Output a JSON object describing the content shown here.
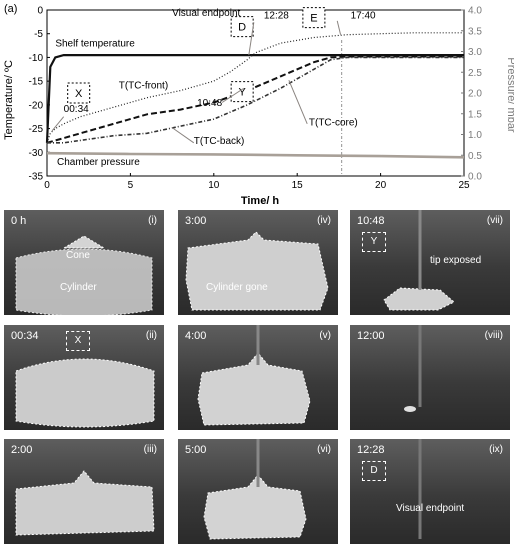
{
  "chart_data": {
    "type": "line",
    "panel_label": "(a)",
    "xlabel": "Time/ h",
    "ylabel_left": "Temperature/ ºC",
    "ylabel_right": "Pressure/ mbar",
    "xlim": [
      0,
      25
    ],
    "ylim_left": [
      -35,
      0
    ],
    "ylim_right": [
      0,
      4
    ],
    "xticks": [
      "0",
      "5",
      "10",
      "15",
      "20",
      "25"
    ],
    "yticks_left": [
      "0",
      "-5",
      "-10",
      "-15",
      "-20",
      "-25",
      "-30",
      "-35"
    ],
    "yticks_right": [
      "0.0",
      "0.5",
      "1.0",
      "1.5",
      "2.0",
      "2.5",
      "3.0",
      "3.5",
      "4.0"
    ],
    "series": [
      {
        "name": "Shelf temperature",
        "axis": "left",
        "x": [
          0,
          0.2,
          0.5,
          1,
          5,
          10,
          15,
          20,
          25
        ],
        "y": [
          -28,
          -12,
          -10,
          -9.5,
          -9.5,
          -9.5,
          -9.5,
          -9.5,
          -9.5
        ]
      },
      {
        "name": "T(TC-front)",
        "axis": "left",
        "x": [
          0,
          0.2,
          0.5,
          1,
          2,
          4,
          6,
          8,
          10,
          11,
          12,
          12.5,
          14,
          16,
          18,
          20,
          22,
          25
        ],
        "y": [
          -28,
          -26,
          -25,
          -24,
          -22.5,
          -20.5,
          -18.5,
          -17,
          -15,
          -13,
          -10.5,
          -9,
          -7,
          -5.8,
          -5.2,
          -5,
          -4.8,
          -4.8
        ]
      },
      {
        "name": "T(TC-core)",
        "axis": "left",
        "x": [
          0,
          1,
          2,
          4,
          6,
          8,
          10,
          12,
          14,
          16,
          17,
          18,
          20,
          25
        ],
        "y": [
          -28,
          -27,
          -26,
          -24,
          -22,
          -21,
          -19.5,
          -17,
          -14,
          -11,
          -10,
          -9.8,
          -9.8,
          -9.8
        ]
      },
      {
        "name": "T(TC-back)",
        "axis": "left",
        "x": [
          0,
          1,
          2,
          4,
          6,
          8,
          10,
          12,
          14,
          16,
          17,
          18,
          20,
          25
        ],
        "y": [
          -28,
          -28,
          -27.5,
          -26.5,
          -26,
          -24.5,
          -23,
          -20,
          -16.5,
          -12.5,
          -10.5,
          -10,
          -10,
          -10
        ]
      },
      {
        "name": "Chamber pressure",
        "axis": "right",
        "x": [
          0,
          5,
          10,
          15,
          20,
          25
        ],
        "y": [
          0.55,
          0.53,
          0.52,
          0.5,
          0.48,
          0.45
        ]
      }
    ],
    "event_boxes": [
      {
        "label": "X",
        "x": 1.9,
        "y": -17.5
      },
      {
        "label": "Y",
        "x": 11.7,
        "y": -17.2
      },
      {
        "label": "D",
        "x": 11.7,
        "y": -3.5
      },
      {
        "label": "E",
        "x": 16.0,
        "y": -1.6
      }
    ],
    "annotations": [
      {
        "text": "00:34",
        "x": 1.0,
        "y": -21.5
      },
      {
        "text": "10:48",
        "x": 9.0,
        "y": -20.2
      },
      {
        "text": "Visual endpoint",
        "x": 7.5,
        "y": -1.3
      },
      {
        "text": "12:28",
        "x": 13.0,
        "y": -1.8
      },
      {
        "text": "17:40",
        "x": 18.2,
        "y": -1.8
      },
      {
        "text": "Shelf temperature",
        "x": 0.5,
        "y": -7.7
      },
      {
        "text": "T(TC-front)",
        "x": 4.3,
        "y": -16.5
      },
      {
        "text": "T(TC-core)",
        "x": 15.7,
        "y": -24.3
      },
      {
        "text": "T(TC-back)",
        "x": 8.8,
        "y": -28.3
      },
      {
        "text": "Chamber pressure",
        "x": 0.6,
        "y": -32.7
      }
    ],
    "vline_x": 17.67
  },
  "panels": [
    {
      "time": "0 h",
      "roman": "(i)",
      "labels": [
        "Cone",
        "Cylinder"
      ]
    },
    {
      "time": "3:00",
      "roman": "(iv)",
      "labels": [
        "Cylinder gone"
      ]
    },
    {
      "time": "10:48",
      "roman": "(vii)",
      "box": "Y",
      "labels": [
        "tip exposed"
      ]
    },
    {
      "time": "00:34",
      "roman": "(ii)",
      "box": "X",
      "labels": []
    },
    {
      "time": "4:00",
      "roman": "(v)",
      "labels": []
    },
    {
      "time": "12:00",
      "roman": "(viii)",
      "labels": []
    },
    {
      "time": "2:00",
      "roman": "(iii)",
      "labels": []
    },
    {
      "time": "5:00",
      "roman": "(vi)",
      "labels": []
    },
    {
      "time": "12:28",
      "roman": "(ix)",
      "box": "D",
      "labels": [
        "Visual endpoint"
      ]
    }
  ],
  "colors": {
    "shelf": "#111111",
    "tc_front": "#222222",
    "tc_core": "#111111",
    "tc_back": "#333333",
    "pressure": "#a8a098",
    "arrow": "#8a8480"
  }
}
